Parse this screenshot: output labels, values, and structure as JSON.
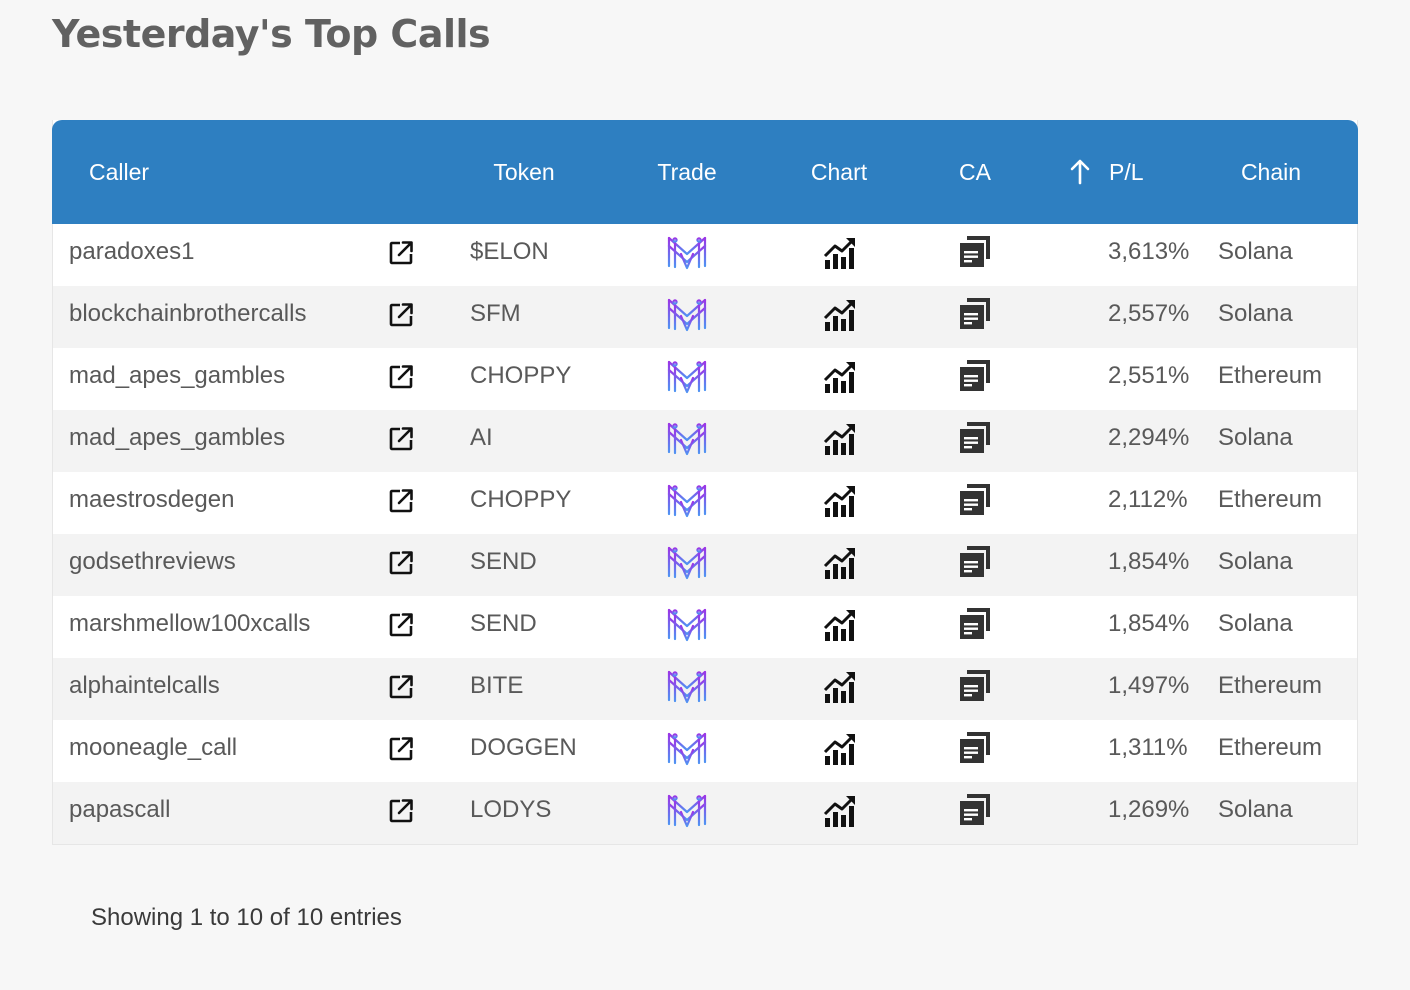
{
  "page": {
    "title": "Yesterday's Top Calls"
  },
  "table": {
    "columns": {
      "caller": "Caller",
      "token": "Token",
      "trade": "Trade",
      "chart": "Chart",
      "ca": "CA",
      "pl": "P/L",
      "chain": "Chain"
    },
    "sort": {
      "column": "P/L",
      "direction": "descending",
      "icon": "arrow-up-icon"
    },
    "rows": [
      {
        "caller": "paradoxes1",
        "token": "$ELON",
        "pl": "3,613%",
        "chain": "Solana"
      },
      {
        "caller": "blockchainbrothercalls",
        "token": "SFM",
        "pl": "2,557%",
        "chain": "Solana"
      },
      {
        "caller": "mad_apes_gambles",
        "token": "CHOPPY",
        "pl": "2,551%",
        "chain": "Ethereum"
      },
      {
        "caller": "mad_apes_gambles",
        "token": "AI",
        "pl": "2,294%",
        "chain": "Solana"
      },
      {
        "caller": "maestrosdegen",
        "token": "CHOPPY",
        "pl": "2,112%",
        "chain": "Ethereum"
      },
      {
        "caller": "godsethreviews",
        "token": "SEND",
        "pl": "1,854%",
        "chain": "Solana"
      },
      {
        "caller": "marshmellow100xcalls",
        "token": "SEND",
        "pl": "1,854%",
        "chain": "Solana"
      },
      {
        "caller": "alphaintelcalls",
        "token": "BITE",
        "pl": "1,497%",
        "chain": "Ethereum"
      },
      {
        "caller": "mooneagle_call",
        "token": "DOGGEN",
        "pl": "1,311%",
        "chain": "Ethereum"
      },
      {
        "caller": "papascall",
        "token": "LODYS",
        "pl": "1,269%",
        "chain": "Solana"
      }
    ],
    "row_icons": {
      "link": "external-link-icon",
      "trade": "maestro-logo-icon",
      "chart": "chart-trend-icon",
      "ca": "copy-icon"
    }
  },
  "footer": {
    "info": "Showing 1 to 10 of 10 entries"
  },
  "colors": {
    "header_bg": "#2e7fc1",
    "header_text": "#ffffff",
    "page_bg": "#f7f7f7",
    "row_alt_bg": "#f3f3f3",
    "trade_icon_purple": "#8b3fe0",
    "trade_icon_blue": "#4d8df0"
  }
}
